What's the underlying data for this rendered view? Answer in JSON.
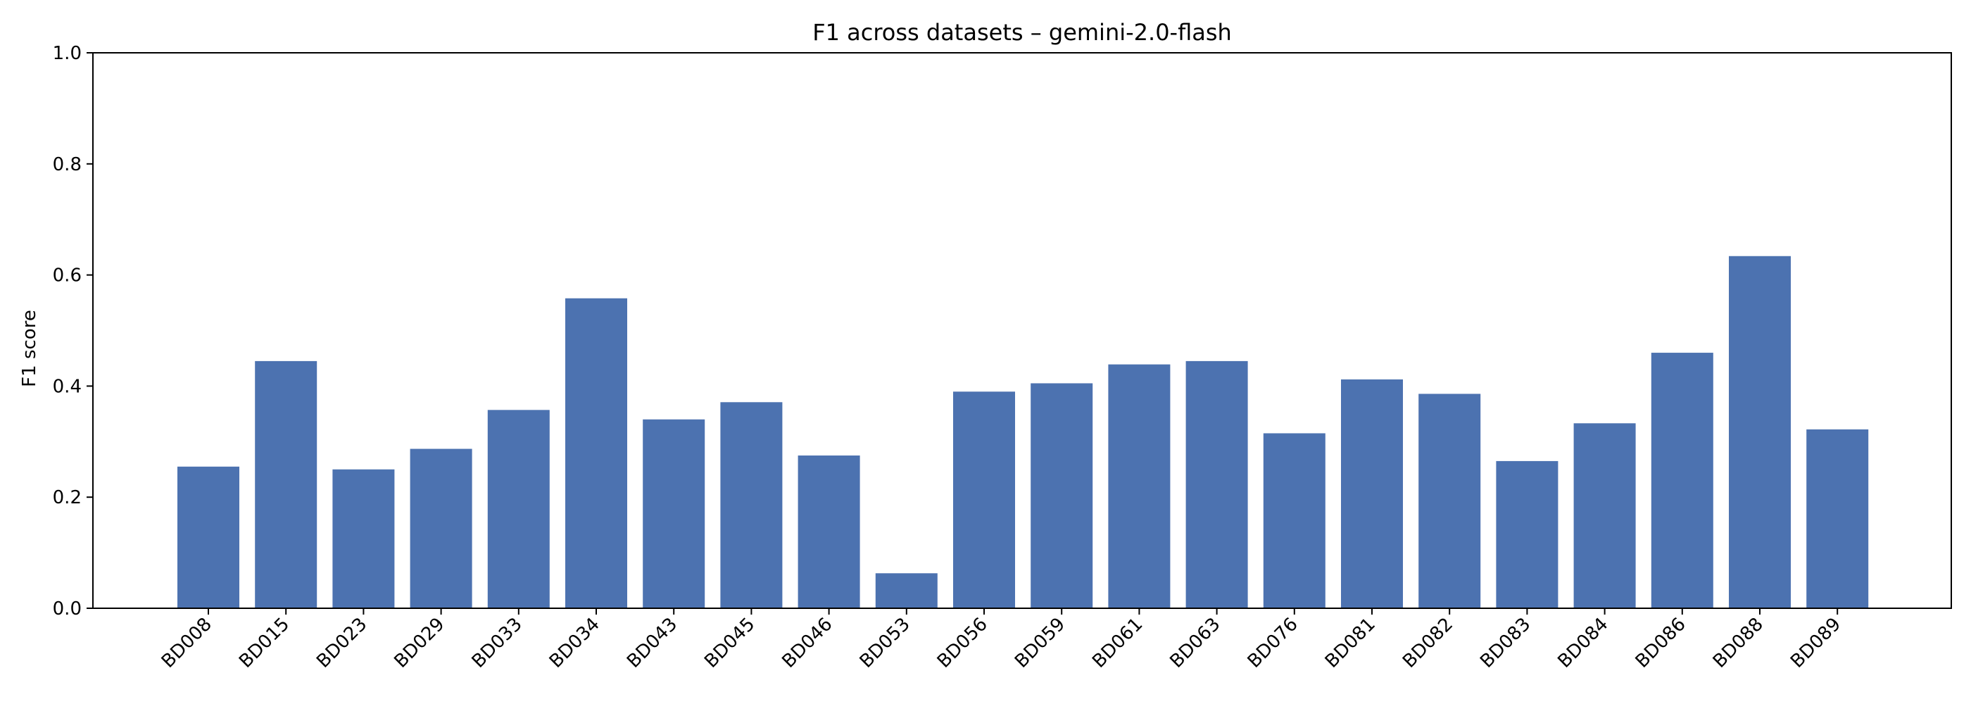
{
  "chart_data": {
    "type": "bar",
    "title": "F1 across datasets – gemini-2.0-flash",
    "xlabel": "",
    "ylabel": "F1 score",
    "ylim": [
      0,
      1.0
    ],
    "yticks": [
      "0.0",
      "0.2",
      "0.4",
      "0.6",
      "0.8",
      "1.0"
    ],
    "grid": false,
    "bar_color": "#4c72b0",
    "categories": [
      "BD008",
      "BD015",
      "BD023",
      "BD029",
      "BD033",
      "BD034",
      "BD043",
      "BD045",
      "BD046",
      "BD053",
      "BD056",
      "BD059",
      "BD061",
      "BD063",
      "BD076",
      "BD081",
      "BD082",
      "BD083",
      "BD084",
      "BD086",
      "BD088",
      "BD089"
    ],
    "values": [
      0.255,
      0.445,
      0.25,
      0.287,
      0.357,
      0.558,
      0.34,
      0.371,
      0.275,
      0.063,
      0.39,
      0.405,
      0.439,
      0.445,
      0.315,
      0.412,
      0.386,
      0.265,
      0.333,
      0.46,
      0.634,
      0.322
    ]
  }
}
